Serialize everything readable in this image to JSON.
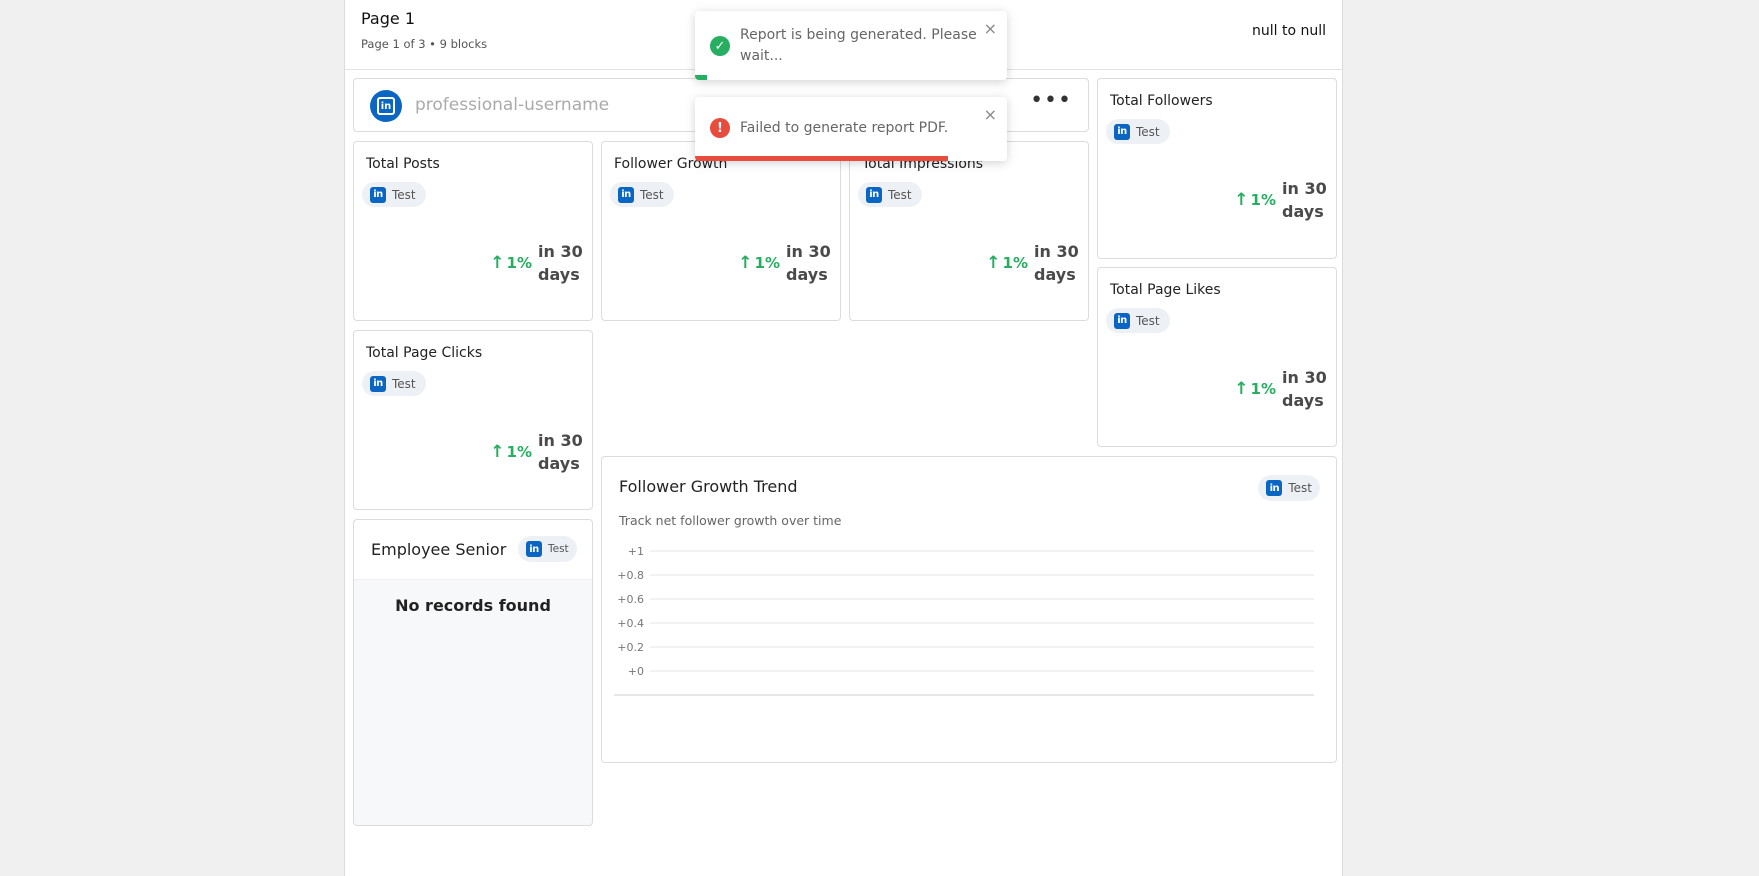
{
  "page": {
    "title": "Page 1",
    "subtitle": "Page 1 of 3 • 9 blocks",
    "date_range": "null to null"
  },
  "profile": {
    "username_placeholder": "professional-username",
    "menu_label": "•••"
  },
  "platform": {
    "icon_text": "in",
    "chip_label": "Test",
    "color": "#0a66c2"
  },
  "metric_cards": [
    {
      "title": "Total Posts",
      "chip": "Test",
      "change": "1%",
      "period": "in 30 days"
    },
    {
      "title": "Follower Growth",
      "chip": "Test",
      "change": "1%",
      "period": "in 30 days"
    },
    {
      "title": "Total Impressions",
      "chip": "Test",
      "change": "1%",
      "period": "in 30 days"
    },
    {
      "title": "Total Followers",
      "chip": "Test",
      "change": "1%",
      "period": "in 30 days"
    },
    {
      "title": "Total Page Clicks",
      "chip": "Test",
      "change": "1%",
      "period": "in 30 days"
    },
    {
      "title": "Total Page Likes",
      "chip": "Test",
      "change": "1%",
      "period": "in 30 days"
    }
  ],
  "employee_card": {
    "title": "Employee Senior",
    "chip": "Test",
    "empty_message": "No records found"
  },
  "trend_card": {
    "title": "Follower Growth Trend",
    "subtitle": "Track net follower growth over time",
    "chip": "Test"
  },
  "chart_data": {
    "type": "line",
    "title": "",
    "xlabel": "",
    "ylabel": "",
    "x": [],
    "series": [],
    "ytick_labels": [
      "+1",
      "+0.8",
      "+0.6",
      "+0.4",
      "+0.2",
      "+0"
    ],
    "ylim": [
      0,
      1
    ],
    "grid": true,
    "empty": true
  },
  "toasts": [
    {
      "type": "success",
      "icon": "✓",
      "message": "Report is being generated. Please wait...",
      "close": "×",
      "progress": 0.04
    },
    {
      "type": "error",
      "icon": "!",
      "message": "Failed to generate report PDF.",
      "close": "×",
      "progress": 0.81
    }
  ],
  "colors": {
    "success": "#27ae60",
    "error": "#e74c3c",
    "trend_up": "#27ae60",
    "linkedin": "#0a66c2"
  }
}
